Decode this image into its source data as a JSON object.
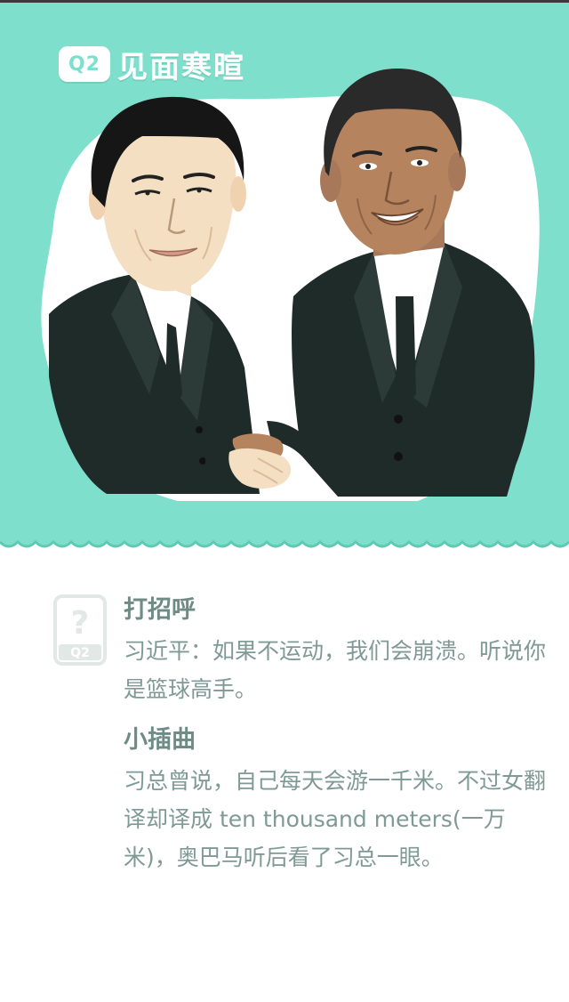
{
  "header": {
    "badge": "Q2",
    "title": "见面寒暄"
  },
  "colors": {
    "accent": "#7ee0cc",
    "accent_dark": "#5fc9b4",
    "suit": "#1f2b29",
    "text_title": "#6e8b84",
    "text_body": "#7f9a94"
  },
  "sections": [
    {
      "title": "打招呼",
      "body": "习近平：如果不运动，我们会崩溃。听说你是篮球高手。"
    },
    {
      "title": "小插曲",
      "body": "习总曾说，自己每天会游一千米。不过女翻译却译成 ten thousand meters(一万米)，奥巴马听后看了习总一眼。"
    }
  ],
  "icons": {
    "question_badge": "question-badge-icon",
    "badge_text": "Q2"
  }
}
